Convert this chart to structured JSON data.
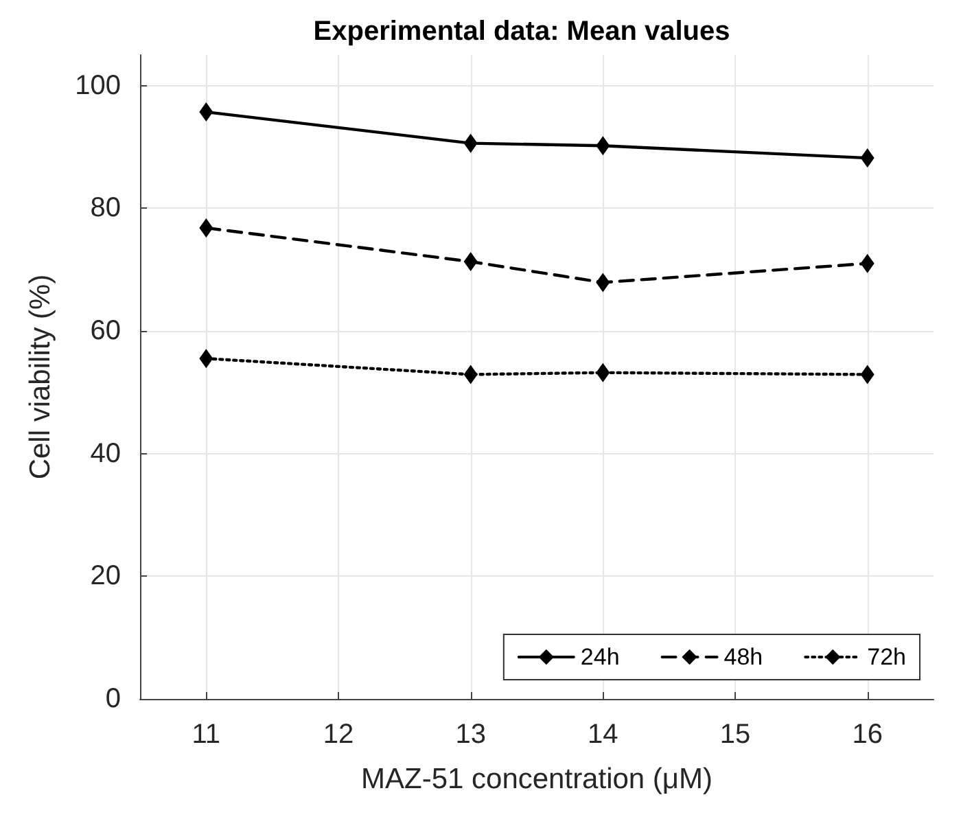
{
  "chart_data": {
    "type": "line",
    "title": "Experimental data: Mean values",
    "xlabel": "MAZ-51 concentration (μM)",
    "ylabel": "Cell viability (%)",
    "x": [
      11,
      13,
      14,
      16
    ],
    "series": [
      {
        "name": "24h",
        "color": "#000000",
        "line_style": "solid",
        "values": [
          95.7,
          90.6,
          90.2,
          88.2
        ]
      },
      {
        "name": "48h",
        "color": "#000000",
        "line_style": "dashed",
        "values": [
          76.8,
          71.3,
          67.9,
          71.0
        ]
      },
      {
        "name": "72h",
        "color": "#000000",
        "line_style": "dotted",
        "values": [
          55.5,
          52.9,
          53.2,
          52.9
        ]
      }
    ],
    "xlim": [
      10.5,
      16.5
    ],
    "xticks": [
      11,
      12,
      13,
      14,
      15,
      16
    ],
    "ylim": [
      0,
      105
    ],
    "yticks": [
      0,
      20,
      40,
      60,
      80,
      100
    ],
    "grid": true,
    "legend": "bottom right",
    "marker": "diamond"
  }
}
